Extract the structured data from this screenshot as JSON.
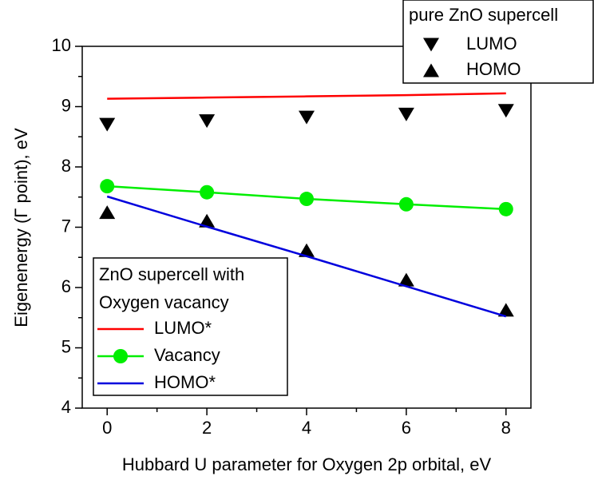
{
  "chart_data": {
    "type": "line",
    "x_label": "Hubbard U parameter for Oxygen 2p orbital, eV",
    "y_label": "Eigenenergy (Γ point), eV",
    "x": [
      0,
      2,
      4,
      6,
      8
    ],
    "xlim": [
      -0.5,
      8.5
    ],
    "xticks": [
      0,
      2,
      4,
      6,
      8
    ],
    "ylim": [
      4,
      10
    ],
    "yticks": [
      4,
      5,
      6,
      7,
      8,
      9,
      10
    ],
    "legends": [
      {
        "title": [
          "pure ZnO supercell"
        ],
        "corner": "upper right",
        "series": [
          {
            "name": "LUMO",
            "color": "#000000",
            "marker": "v",
            "line": false,
            "values": [
              8.7,
              8.76,
              8.82,
              8.87,
              8.93
            ]
          },
          {
            "name": "HOMO",
            "color": "#000000",
            "marker": "^",
            "line": false,
            "values": [
              7.25,
              7.11,
              6.62,
              6.13,
              5.63
            ]
          }
        ]
      },
      {
        "title": [
          "ZnO supercell with",
          "Oxygen vacancy"
        ],
        "corner": "lower left",
        "series": [
          {
            "name": "LUMO*",
            "color": "#ff0000",
            "marker": null,
            "line": true,
            "values": [
              9.13,
              9.15,
              9.17,
              9.19,
              9.22
            ]
          },
          {
            "name": "Vacancy",
            "color": "#00ee00",
            "marker": "o",
            "line": true,
            "values": [
              7.68,
              7.58,
              7.47,
              7.38,
              7.3
            ]
          },
          {
            "name": "HOMO*",
            "color": "#0000dd",
            "marker": null,
            "line": true,
            "values": [
              7.51,
              7.01,
              6.52,
              6.02,
              5.52
            ]
          }
        ]
      }
    ]
  }
}
